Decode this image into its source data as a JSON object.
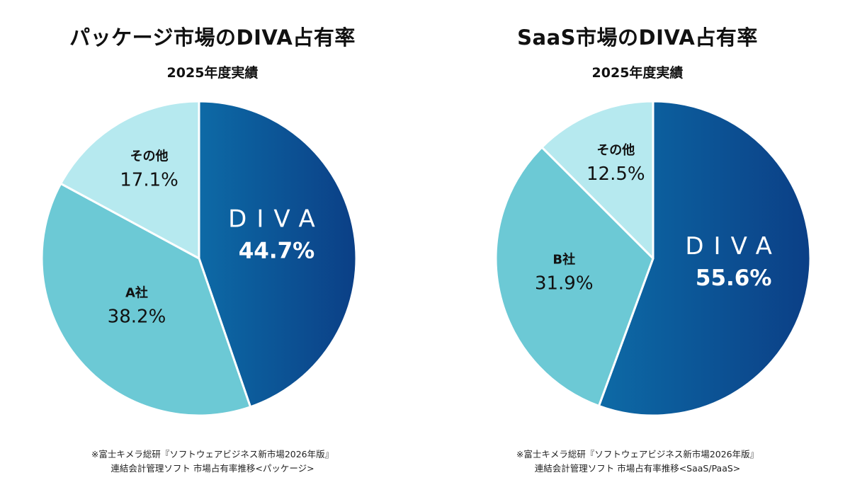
{
  "chart_data": [
    {
      "type": "pie",
      "title": "パッケージ市場のDIVA占有率",
      "subtitle": "2025年度実績",
      "slices": [
        {
          "label": "DIVA",
          "value": 44.7,
          "value_label": "44.7%",
          "color": "#0d6aa6",
          "color_end": "#0b3f86"
        },
        {
          "label": "A社",
          "value": 38.2,
          "value_label": "38.2%",
          "color": "#6cc9d5"
        },
        {
          "label": "その他",
          "value": 17.1,
          "value_label": "17.1%",
          "color": "#b6e9ef"
        }
      ],
      "source_note": [
        "※富士キメラ総研『ソフトウェアビジネス新市場2026年版』",
        "連結会計管理ソフト 市場占有率推移<パッケージ>"
      ]
    },
    {
      "type": "pie",
      "title": "SaaS市場のDIVA占有率",
      "subtitle": "2025年度実績",
      "slices": [
        {
          "label": "DIVA",
          "value": 55.6,
          "value_label": "55.6%",
          "color": "#0d6aa6",
          "color_end": "#0b3f86"
        },
        {
          "label": "B社",
          "value": 31.9,
          "value_label": "31.9%",
          "color": "#6cc9d5"
        },
        {
          "label": "その他",
          "value": 12.5,
          "value_label": "12.5%",
          "color": "#b6e9ef"
        }
      ],
      "source_note": [
        "※富士キメラ総研『ソフトウェアビジネス新市場2026年版』",
        "連結会計管理ソフト 市場占有率推移<SaaS/PaaS>"
      ]
    }
  ]
}
